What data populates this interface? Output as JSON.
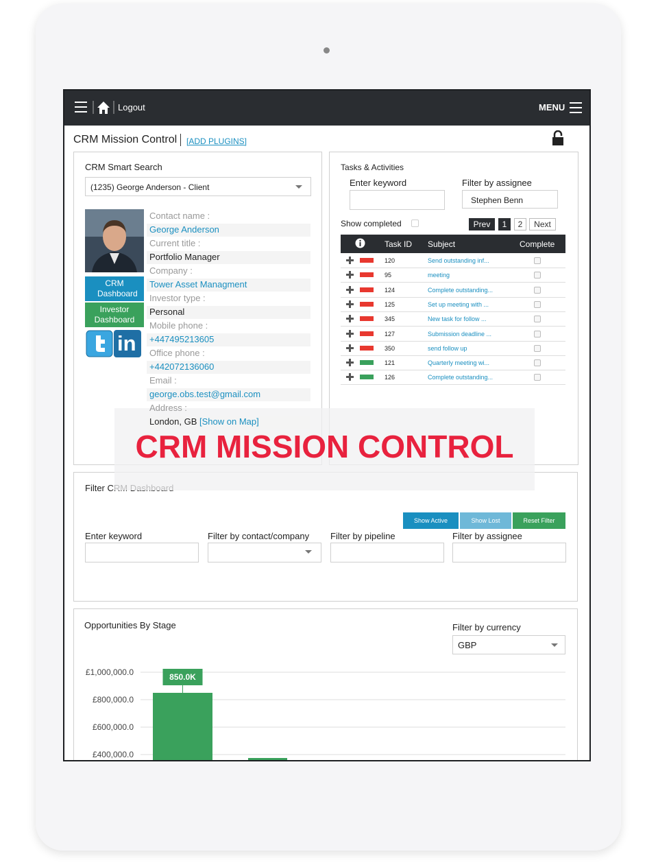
{
  "header": {
    "logout": "Logout",
    "menu": "MENU"
  },
  "page": {
    "title": "CRM Mission Control",
    "add_plugins": "[ADD PLUGINS]"
  },
  "smart_search": {
    "title": "CRM Smart Search",
    "selected": "(1235) George Anderson - Client",
    "buttons": [
      "CRM Dashboard",
      "Investor Dashboard"
    ],
    "linkedin": "in",
    "fields": [
      {
        "label": "Contact name :",
        "value": "George Anderson",
        "link": true
      },
      {
        "label": "Current title :",
        "value": "Portfolio Manager",
        "link": false
      },
      {
        "label": "Company :",
        "value": "Tower Asset Managment",
        "link": true
      },
      {
        "label": "Investor type :",
        "value": "Personal",
        "link": false
      },
      {
        "label": "Mobile phone :",
        "value": "+447495213605",
        "link": true
      },
      {
        "label": "Office phone :",
        "value": "+442072136060",
        "link": true
      },
      {
        "label": "Email :",
        "value": "george.obs.test@gmail.com",
        "link": true
      },
      {
        "label": "Address :",
        "value": "London, GB",
        "link": false
      }
    ],
    "map_link": "[Show on Map]"
  },
  "tasks": {
    "title": "Tasks & Activities",
    "keyword_label": "Enter keyword",
    "assignee_label": "Filter by assignee",
    "assignee": "Stephen Benn",
    "show_completed": "Show completed",
    "pagination": [
      "Prev",
      "1",
      "2",
      "Next"
    ],
    "columns": [
      "Task ID",
      "Subject",
      "Complete"
    ],
    "rows": [
      {
        "id": "120",
        "subject": "Send outstanding inf...",
        "flag": "#e8382f"
      },
      {
        "id": "95",
        "subject": "meeting",
        "flag": "#e8382f"
      },
      {
        "id": "124",
        "subject": "Complete outstanding...",
        "flag": "#e8382f"
      },
      {
        "id": "125",
        "subject": "Set up meeting with ...",
        "flag": "#e8382f"
      },
      {
        "id": "345",
        "subject": "New task for follow ...",
        "flag": "#e8382f"
      },
      {
        "id": "127",
        "subject": "Submission deadline ...",
        "flag": "#e8382f"
      },
      {
        "id": "350",
        "subject": "send follow up",
        "flag": "#e8382f"
      },
      {
        "id": "121",
        "subject": "Quarterly meeting wi...",
        "flag": "#3aa15c"
      },
      {
        "id": "126",
        "subject": "Complete outstanding...",
        "flag": "#3aa15c"
      }
    ]
  },
  "banner": "CRM MISSION CONTROL",
  "filter": {
    "title": "Filter CRM Dashboard",
    "buttons": [
      {
        "label": "Show Active",
        "color": "#1a8fc0"
      },
      {
        "label": "Show Lost",
        "color": "#6fb8d8"
      },
      {
        "label": "Reset Filter",
        "color": "#3aa15c"
      }
    ],
    "fields": [
      "Enter keyword",
      "Filter by contact/company",
      "Filter by pipeline",
      "Filter by assignee"
    ]
  },
  "opportunities": {
    "title": "Opportunities By Stage",
    "currency_label": "Filter by currency",
    "currency": "GBP",
    "chart": {
      "type": "bar",
      "color": "#3aa15c",
      "ylim": [
        0,
        1000000
      ],
      "yticks": [
        {
          "value": 1000000,
          "label": "£1,000,000.0"
        },
        {
          "value": 800000,
          "label": "£800,000.0"
        },
        {
          "value": 600000,
          "label": "£600,000.0"
        },
        {
          "value": 400000,
          "label": "£400,000.0"
        }
      ],
      "bars": [
        {
          "value": 850000,
          "value_label": "850.0K"
        },
        {
          "value": 375000
        }
      ]
    }
  }
}
